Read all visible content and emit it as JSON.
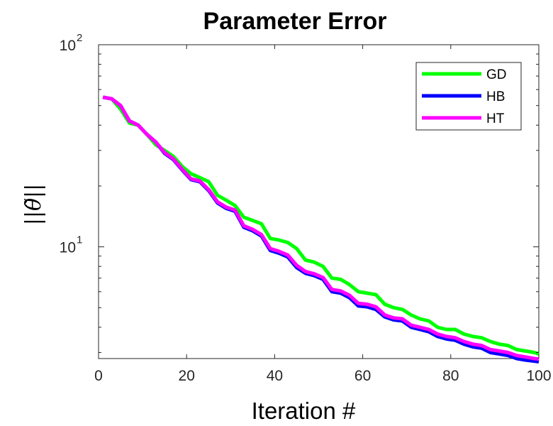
{
  "chart_data": {
    "type": "line",
    "title": "Parameter Error",
    "xlabel": "Iteration #",
    "ylabel": "||θ̃||",
    "xlim": [
      0,
      100
    ],
    "ylim": [
      2.8,
      100
    ],
    "yscale": "log",
    "xticks": [
      "0",
      "20",
      "40",
      "60",
      "80",
      "100"
    ],
    "yticks": [
      {
        "base": "10",
        "exp": "1",
        "value": 10
      },
      {
        "base": "10",
        "exp": "2",
        "value": 100
      }
    ],
    "grid": false,
    "legend_position": "top-right",
    "series": [
      {
        "name": "GD",
        "color": "#00ff00",
        "x": [
          1,
          3,
          5,
          7,
          9,
          11,
          13,
          15,
          17,
          19,
          21,
          23,
          25,
          27,
          29,
          31,
          33,
          35,
          37,
          39,
          41,
          43,
          45,
          47,
          49,
          51,
          53,
          55,
          57,
          59,
          61,
          63,
          65,
          67,
          69,
          71,
          73,
          75,
          77,
          79,
          81,
          83,
          85,
          87,
          89,
          91,
          93,
          95,
          97,
          99,
          100
        ],
        "y": [
          55,
          54,
          48,
          41,
          40,
          36,
          32,
          30,
          28,
          25,
          23,
          22,
          21,
          18,
          17,
          16,
          14,
          13.5,
          13,
          11,
          10.8,
          10.5,
          9.8,
          8.6,
          8.4,
          8.0,
          7.0,
          6.9,
          6.5,
          6.0,
          5.9,
          5.8,
          5.2,
          5.0,
          4.9,
          4.6,
          4.4,
          4.3,
          4.0,
          3.9,
          3.9,
          3.7,
          3.6,
          3.55,
          3.4,
          3.3,
          3.25,
          3.1,
          3.05,
          3.0,
          2.95
        ]
      },
      {
        "name": "HB",
        "color": "#0000ff",
        "x": [
          1,
          3,
          5,
          7,
          9,
          11,
          13,
          15,
          17,
          19,
          21,
          23,
          25,
          27,
          29,
          31,
          33,
          35,
          37,
          39,
          41,
          43,
          45,
          47,
          49,
          51,
          53,
          55,
          57,
          59,
          61,
          63,
          65,
          67,
          69,
          71,
          73,
          75,
          77,
          79,
          81,
          83,
          85,
          87,
          89,
          91,
          93,
          95,
          97,
          99,
          100
        ],
        "y": [
          55,
          54,
          50,
          42,
          40,
          36,
          33,
          29,
          27,
          24,
          21.5,
          21,
          19,
          16.5,
          15.5,
          15,
          12.5,
          12,
          11.3,
          9.6,
          9.3,
          8.9,
          7.9,
          7.4,
          7.2,
          6.9,
          6.0,
          5.9,
          5.6,
          5.1,
          5.05,
          4.9,
          4.5,
          4.35,
          4.3,
          4.0,
          3.9,
          3.8,
          3.6,
          3.5,
          3.45,
          3.3,
          3.2,
          3.15,
          3.0,
          2.95,
          2.9,
          2.8,
          2.75,
          2.72,
          2.7
        ]
      },
      {
        "name": "HT",
        "color": "#ff00ff",
        "x": [
          1,
          3,
          5,
          7,
          9,
          11,
          13,
          15,
          17,
          19,
          21,
          23,
          25,
          27,
          29,
          31,
          33,
          35,
          37,
          39,
          41,
          43,
          45,
          47,
          49,
          51,
          53,
          55,
          57,
          59,
          61,
          63,
          65,
          67,
          69,
          71,
          73,
          75,
          77,
          79,
          81,
          83,
          85,
          87,
          89,
          91,
          93,
          95,
          97,
          99,
          100
        ],
        "y": [
          55,
          54,
          50,
          42,
          40,
          36,
          33,
          29.3,
          27.2,
          24.2,
          21.7,
          21.2,
          19.2,
          16.7,
          15.7,
          15.2,
          12.7,
          12.2,
          11.5,
          9.8,
          9.5,
          9.1,
          8.1,
          7.55,
          7.35,
          7.05,
          6.15,
          6.05,
          5.75,
          5.25,
          5.2,
          5.05,
          4.6,
          4.45,
          4.4,
          4.1,
          4.0,
          3.9,
          3.7,
          3.6,
          3.55,
          3.4,
          3.3,
          3.25,
          3.1,
          3.05,
          3.0,
          2.9,
          2.85,
          2.8,
          2.78
        ]
      }
    ]
  }
}
